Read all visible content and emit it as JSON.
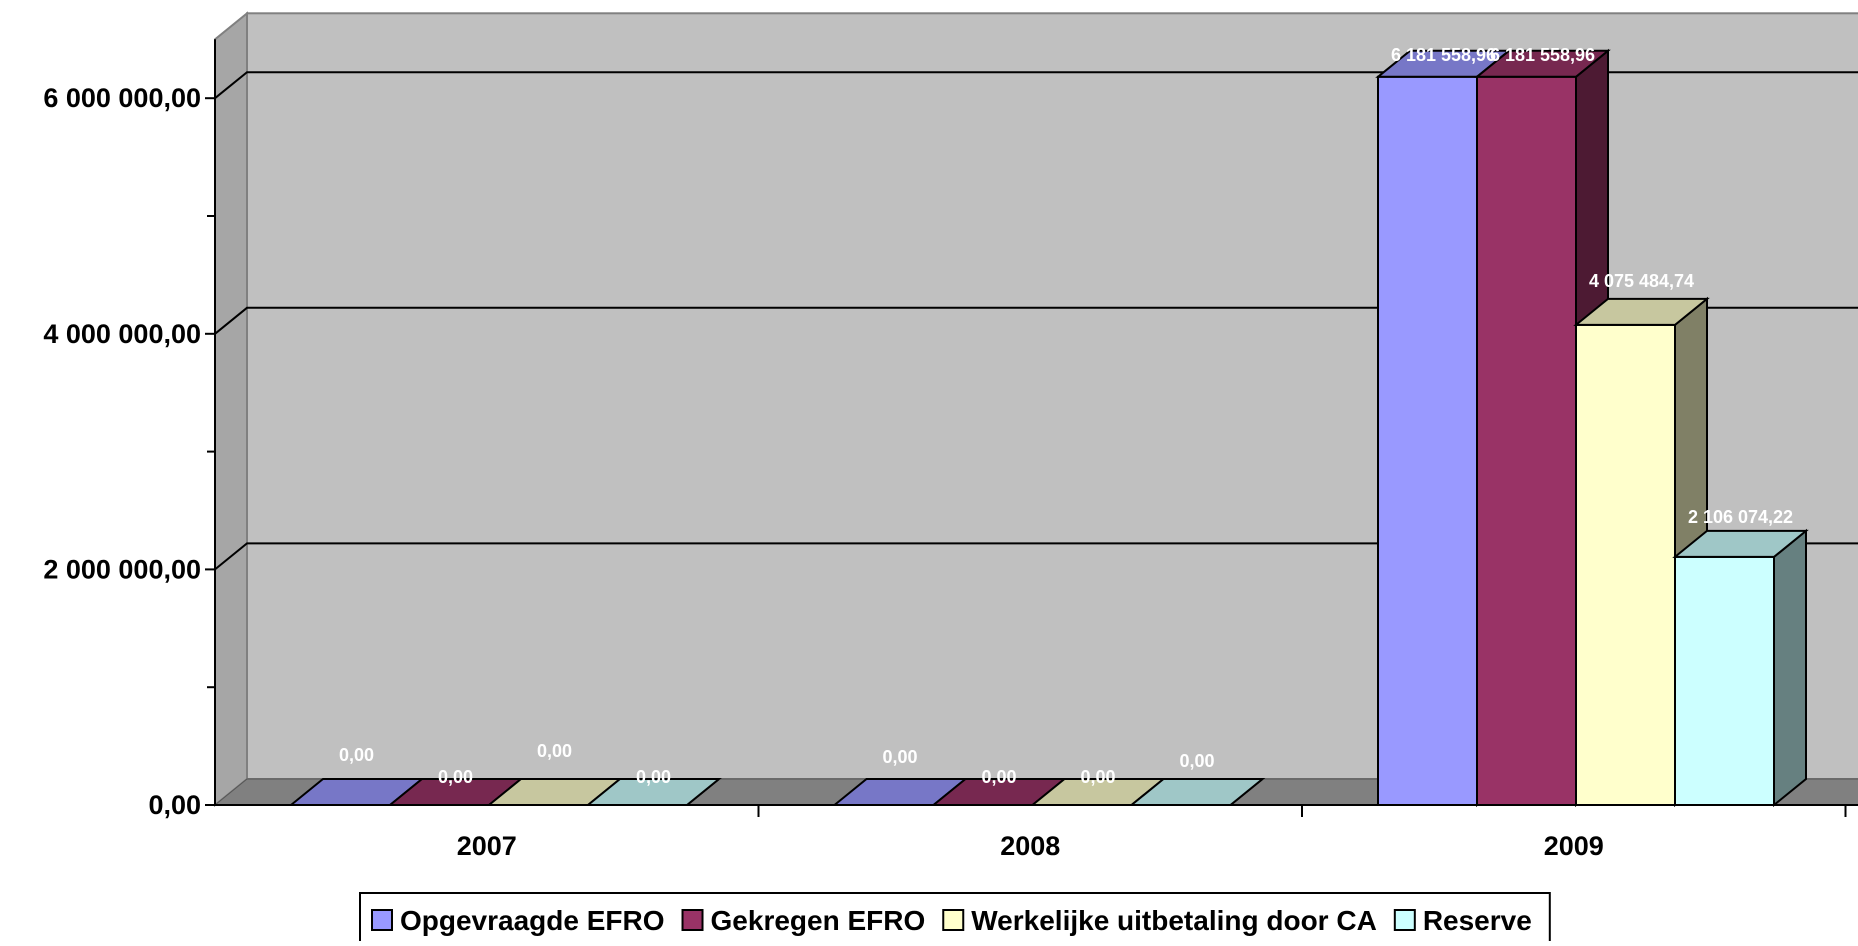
{
  "chart_data": {
    "type": "bar",
    "categories": [
      "2007",
      "2008",
      "2009"
    ],
    "series": [
      {
        "name": "Opgevraagde EFRO",
        "values": [
          0,
          0,
          6181558.96
        ],
        "labels": [
          "0,00",
          "0,00",
          "6 181 558,96"
        ],
        "color": "#9999ff"
      },
      {
        "name": "Gekregen EFRO",
        "values": [
          0,
          0,
          6181558.96
        ],
        "labels": [
          "0,00",
          "0,00",
          "6 181 558,96"
        ],
        "color": "#993366"
      },
      {
        "name": "Werkelijke uitbetaling door CA",
        "values": [
          0,
          0,
          4075484.74
        ],
        "labels": [
          "0,00",
          "0,00",
          "4 075 484,74"
        ],
        "color": "#ffffcc"
      },
      {
        "name": "Reserve",
        "values": [
          0,
          0,
          2106074.22
        ],
        "labels": [
          "0,00",
          "0,00",
          "2 106 074,22"
        ],
        "color": "#ccffff"
      }
    ],
    "y_ticks": [
      "0,00",
      "2 000 000,00",
      "4 000 000,00",
      "6 000 000,00"
    ],
    "ylim": [
      0,
      6500000
    ],
    "grid": true,
    "legend_position": "bottom",
    "colors": {
      "wall": "#c0c0c0",
      "wall_side": "#a6a6a6",
      "floor": "#808080",
      "gridline": "#000000"
    }
  }
}
